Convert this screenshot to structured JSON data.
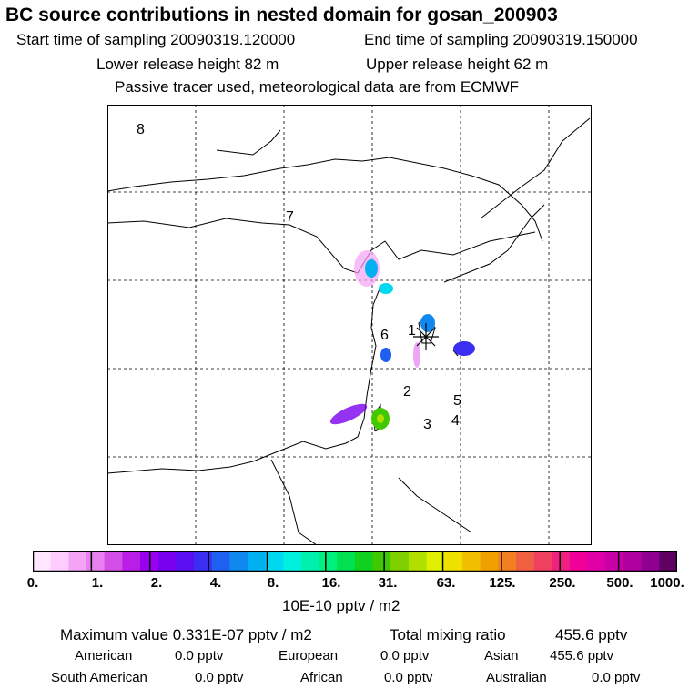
{
  "chart_data": {
    "type": "heatmap",
    "title": "BC  source contributions in nested domain for gosan_200903",
    "start_label": "Start time of sampling 20090319.120000",
    "end_label": "End time of sampling 20090319.150000",
    "lower_label": "Lower release height   82 m",
    "upper_label": "Upper release height   62 m",
    "tracer_note": "Passive tracer used, meteorological data are from ECMWF",
    "region_labels": [
      "1",
      "2",
      "3",
      "4",
      "5",
      "6",
      "7",
      "8"
    ],
    "colorbar": {
      "tick_labels": [
        "0.",
        "1.",
        "2.",
        "4.",
        "8.",
        "16.",
        "31.",
        "63.",
        "125.",
        "250.",
        "500.",
        "1000."
      ],
      "unit": "10E-10 pptv / m2",
      "colors": [
        "#ffe6ff",
        "#ffccff",
        "#f5a3f5",
        "#e680ee",
        "#d24ee6",
        "#b91ee6",
        "#9a00f0",
        "#7a00f0",
        "#5a10f0",
        "#3a2ef0",
        "#2060f0",
        "#1088f0",
        "#00b0f0",
        "#00d8f0",
        "#00f0e0",
        "#00f0b0",
        "#00f080",
        "#00e050",
        "#10d020",
        "#40c800",
        "#80d000",
        "#b0e000",
        "#e0f000",
        "#f0e000",
        "#f0c000",
        "#f0a000",
        "#f08020",
        "#f06040",
        "#f04060",
        "#f02080",
        "#f00098",
        "#e000a8",
        "#c800a8",
        "#b000a0",
        "#900090",
        "#600060"
      ]
    },
    "max_label": "Maximum value  0.331E-07 pptv / m2",
    "total_label": "Total mixing ratio",
    "total_value": "455.6 pptv",
    "contributions": [
      {
        "name": "American",
        "value": "0.0 pptv"
      },
      {
        "name": "European",
        "value": "0.0 pptv"
      },
      {
        "name": "Asian",
        "value": "455.6 pptv"
      },
      {
        "name": "South American",
        "value": "0.0 pptv"
      },
      {
        "name": "African",
        "value": "0.0 pptv"
      },
      {
        "name": "Australian",
        "value": "0.0 pptv"
      }
    ]
  }
}
